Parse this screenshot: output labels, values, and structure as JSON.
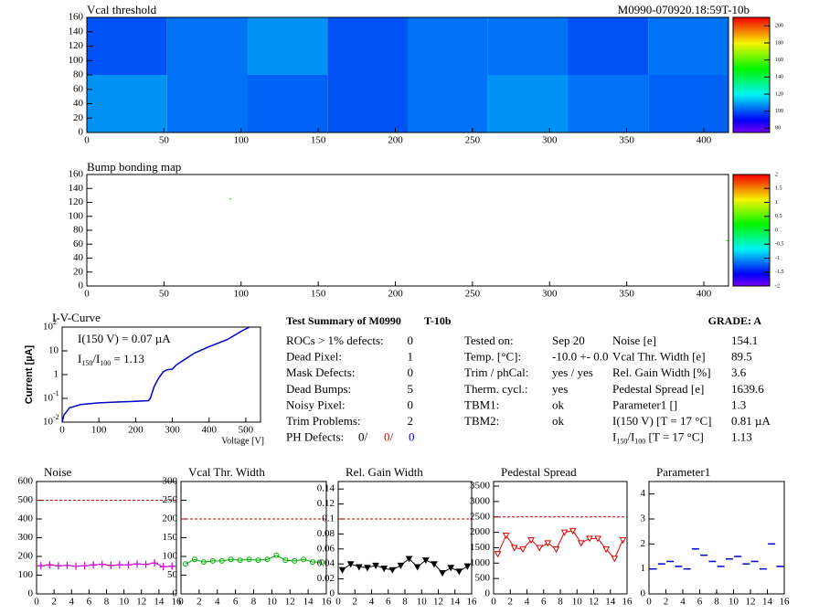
{
  "chart_data": [
    {
      "type": "heatmap",
      "title": "Vcal threshold",
      "subtitle": "M0990-070920.18:59T-10b",
      "xlim": [
        0,
        416
      ],
      "ylim": [
        0,
        160
      ],
      "xticks": [
        0,
        50,
        100,
        150,
        200,
        250,
        300,
        350,
        400
      ],
      "yticks": [
        0,
        20,
        40,
        60,
        80,
        100,
        120,
        140,
        160
      ],
      "zlim": [
        75,
        210
      ],
      "zticks": [
        80,
        100,
        120,
        140,
        160,
        180,
        200
      ],
      "values": [
        [
          100,
          104,
          108,
          100,
          104,
          104,
          100,
          104
        ],
        [
          108,
          104,
          102,
          100,
          104,
          108,
          104,
          102
        ]
      ]
    },
    {
      "type": "heatmap",
      "title": "Bump bonding map",
      "xlim": [
        0,
        416
      ],
      "ylim": [
        0,
        160
      ],
      "xticks": [
        0,
        50,
        100,
        150,
        200,
        250,
        300,
        350,
        400
      ],
      "yticks": [
        0,
        20,
        40,
        60,
        80,
        100,
        120,
        140,
        160
      ],
      "zlim": [
        -2,
        2
      ],
      "zticks": [
        -2,
        -1.5,
        -1,
        -0.5,
        0,
        0.5,
        1,
        1.5,
        2
      ],
      "x": [
        93,
        415
      ],
      "y": [
        125,
        65
      ],
      "values": [
        0.3,
        0.3
      ]
    },
    {
      "type": "line",
      "title": "I-V-Curve",
      "x_label": "Voltage [V]",
      "y_label": "Current [µA]",
      "log_y": true,
      "color": "#0000cc",
      "annotation": "I(150 V) = 0.07 µA",
      "ratio_label": {
        "parts": [
          "I",
          "150",
          "/I",
          "100",
          " =  1.13"
        ]
      },
      "xlim": [
        0,
        540
      ],
      "ylim": [
        0.01,
        100
      ],
      "xticks": [
        0,
        100,
        200,
        300,
        400,
        500
      ],
      "yticks": [
        {
          "value": 0.01,
          "label": "10",
          "exponent": "-2"
        },
        {
          "value": 0.1,
          "label": "10",
          "exponent": "-1"
        },
        {
          "value": 1,
          "label": "1"
        },
        {
          "value": 10,
          "label": "10"
        },
        {
          "value": 100,
          "label": "10",
          "exponent": "2"
        }
      ],
      "x": [
        0,
        5,
        20,
        50,
        100,
        150,
        200,
        235,
        240,
        250,
        260,
        265,
        275,
        285,
        300,
        310,
        330,
        360,
        400,
        450,
        490,
        510
      ],
      "y": [
        0.01,
        0.02,
        0.04,
        0.055,
        0.065,
        0.07,
        0.075,
        0.08,
        0.1,
        0.3,
        0.6,
        0.8,
        1.3,
        1.6,
        1.7,
        2.5,
        4,
        8,
        15,
        30,
        70,
        100
      ]
    },
    {
      "type": "line",
      "title": "Noise",
      "color": "#cc00cc",
      "marker": "cross",
      "line": true,
      "reference_line": 500,
      "xlim": [
        0,
        16
      ],
      "ylim": [
        0,
        600
      ],
      "xticks": [
        0,
        2,
        4,
        6,
        8,
        10,
        12,
        14,
        16
      ],
      "yticks": [
        0,
        100,
        200,
        300,
        400,
        500,
        600
      ],
      "x": [
        0.5,
        1.5,
        2.5,
        3.5,
        4.5,
        5.5,
        6.5,
        7.5,
        8.5,
        9.5,
        10.5,
        11.5,
        12.5,
        13.5,
        14.5,
        15.5
      ],
      "values": [
        150,
        155,
        150,
        152,
        148,
        150,
        155,
        158,
        152,
        155,
        155,
        160,
        158,
        165,
        145,
        148
      ]
    },
    {
      "type": "line",
      "title": "Vcal Thr. Width",
      "color": "#00aa00",
      "marker": "circle",
      "line": true,
      "reference_line": 200,
      "xlim": [
        0,
        16
      ],
      "ylim": [
        0,
        300
      ],
      "xticks": [
        0,
        2,
        4,
        6,
        8,
        10,
        12,
        14,
        16
      ],
      "yticks": [
        0,
        50,
        100,
        150,
        200,
        250,
        300
      ],
      "x": [
        0.5,
        1.5,
        2.5,
        3.5,
        4.5,
        5.5,
        6.5,
        7.5,
        8.5,
        9.5,
        10.5,
        11.5,
        12.5,
        13.5,
        14.5,
        15.5
      ],
      "values": [
        80,
        92,
        85,
        88,
        88,
        92,
        90,
        92,
        90,
        92,
        103,
        90,
        88,
        92,
        85,
        85
      ]
    },
    {
      "type": "line",
      "title": "Rel. Gain Width",
      "color": "#000000",
      "marker": "triangle",
      "line": true,
      "reference_line": 0.1,
      "xlim": [
        0,
        16
      ],
      "ylim": [
        0,
        0.15
      ],
      "xticks": [
        0,
        2,
        4,
        6,
        8,
        10,
        12,
        14,
        16
      ],
      "yticks": [
        0,
        0.02,
        0.04,
        0.06,
        0.08,
        0.1,
        0.12,
        0.14
      ],
      "x": [
        0.5,
        1.5,
        2.5,
        3.5,
        4.5,
        5.5,
        6.5,
        7.5,
        8.5,
        9.5,
        10.5,
        11.5,
        12.5,
        13.5,
        14.5,
        15.5
      ],
      "values": [
        0.032,
        0.04,
        0.036,
        0.035,
        0.038,
        0.034,
        0.032,
        0.038,
        0.047,
        0.036,
        0.045,
        0.04,
        0.028,
        0.035,
        0.03,
        0.037
      ]
    },
    {
      "type": "line",
      "title": "Pedestal Spread",
      "color": "#dd0000",
      "marker": "triangle-open",
      "line": true,
      "reference_line": 2500,
      "xlim": [
        0,
        16
      ],
      "ylim": [
        0,
        3650
      ],
      "xticks": [
        0,
        2,
        4,
        6,
        8,
        10,
        12,
        14,
        16
      ],
      "yticks": [
        0,
        500,
        1000,
        1500,
        2000,
        2500,
        3000,
        3500
      ],
      "x": [
        0.5,
        1.5,
        2.5,
        3.5,
        4.5,
        5.5,
        6.5,
        7.5,
        8.5,
        9.5,
        10.5,
        11.5,
        12.5,
        13.5,
        14.5,
        15.5
      ],
      "values": [
        1300,
        1900,
        1500,
        1450,
        1750,
        1500,
        1650,
        1450,
        2000,
        2050,
        1650,
        1800,
        1800,
        1450,
        1150,
        1750
      ]
    },
    {
      "type": "line",
      "title": "Parameter1",
      "color": "#0000cc",
      "marker": "hbar",
      "line": false,
      "xlim": [
        0,
        16
      ],
      "ylim": [
        0,
        4.5
      ],
      "xticks": [
        0,
        2,
        4,
        6,
        8,
        10,
        12,
        14,
        16
      ],
      "yticks": [
        0,
        1,
        2,
        3,
        4
      ],
      "x": [
        0.5,
        1.5,
        2.5,
        3.5,
        4.5,
        5.5,
        6.5,
        7.5,
        8.5,
        9.5,
        10.5,
        11.5,
        12.5,
        13.5,
        14.5,
        15.5
      ],
      "values": [
        1.0,
        1.2,
        1.3,
        1.1,
        1.0,
        1.8,
        1.55,
        1.3,
        1.1,
        1.4,
        1.5,
        1.2,
        1.3,
        1.0,
        2.0,
        1.1
      ]
    }
  ],
  "summary": {
    "title": "Test Summary of M0990",
    "tag": "T-10b",
    "grade": "GRADE:  A",
    "left": [
      [
        "ROCs > 1% defects:",
        "0"
      ],
      [
        "Dead Pixel:",
        "1"
      ],
      [
        "Mask Defects:",
        "0"
      ],
      [
        "Dead Bumps:",
        "5"
      ],
      [
        "Noisy Pixel:",
        "0"
      ],
      [
        "Trim Problems:",
        "2"
      ]
    ],
    "ph_defects": {
      "label": "PH Defects:",
      "values": [
        "0/",
        "0/",
        "0"
      ],
      "colors": [
        "#000000",
        "#dd0000",
        "#0000cc"
      ]
    },
    "middle": [
      [
        "Tested on:",
        "Sep 20"
      ],
      [
        "Temp. [°C]:",
        "-10.0 +- 0.0"
      ],
      [
        "Trim / phCal:",
        "yes / yes"
      ],
      [
        "Therm. cycl.:",
        "yes"
      ],
      [
        "TBM1:",
        "ok"
      ],
      [
        "TBM2:",
        "ok"
      ]
    ],
    "right": [
      [
        "Noise [e]",
        "154.1"
      ],
      [
        "Vcal Thr. Width [e]",
        "89.5"
      ],
      [
        "Rel. Gain Width [%]",
        "3.6"
      ],
      [
        "Pedestal Spread [e]",
        "1639.6"
      ],
      [
        "Parameter1 []",
        "1.3"
      ],
      [
        "I(150 V) [T = 17 °C]",
        "0.81 µA"
      ]
    ],
    "ratio_row": {
      "parts": [
        "I",
        "150",
        "/I",
        "100",
        "  [T = 17 °C]"
      ],
      "value": "1.13"
    }
  }
}
